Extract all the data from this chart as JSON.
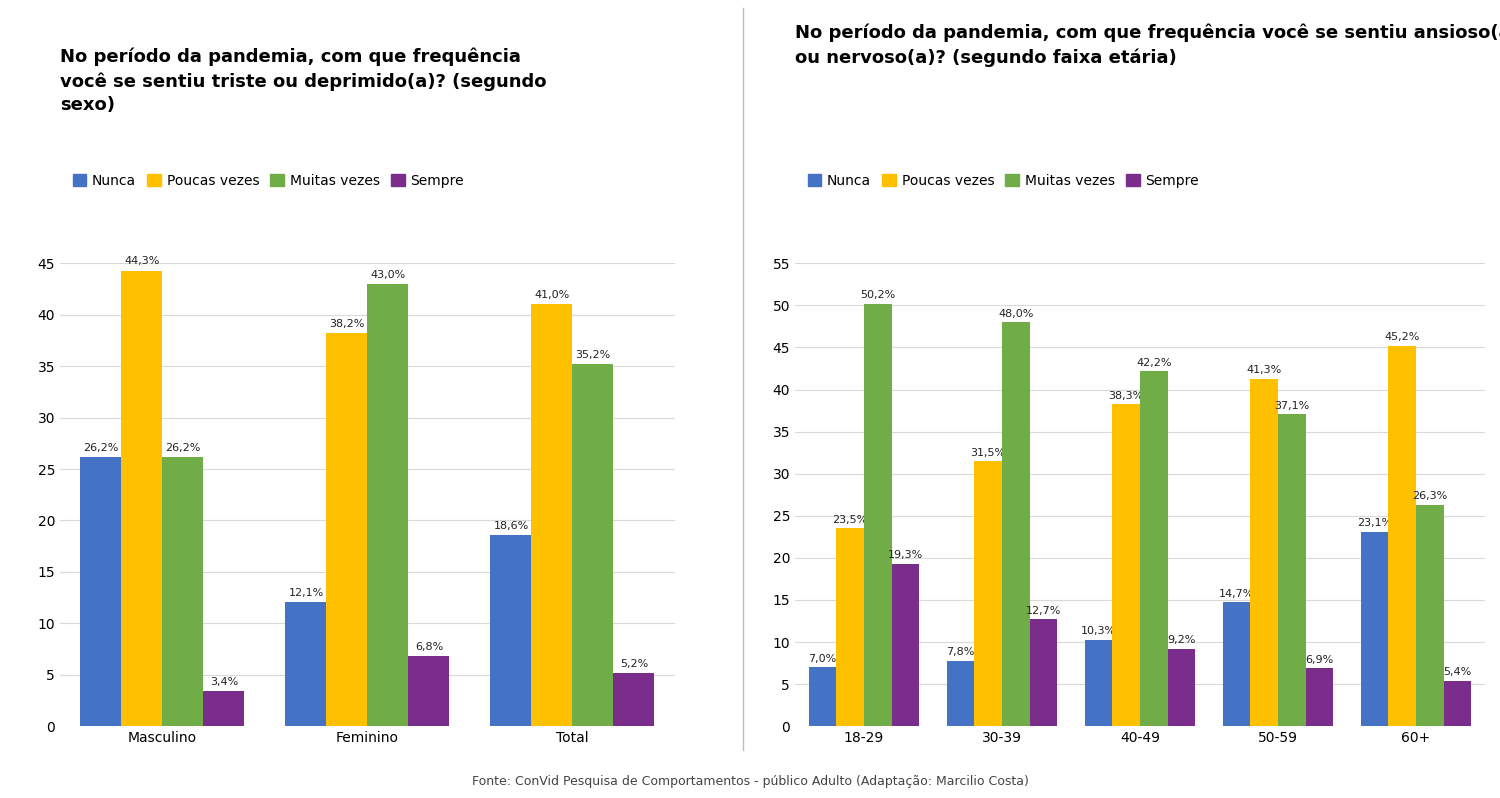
{
  "chart1": {
    "title": "No período da pandemia, com que frequência\nvocê se sentiu triste ou deprimido(a)? (segundo\nsexo)",
    "categories": [
      "Masculino",
      "Feminino",
      "Total"
    ],
    "series": {
      "Nunca": [
        26.2,
        12.1,
        18.6
      ],
      "Poucas vezes": [
        44.3,
        38.2,
        41.0
      ],
      "Muitas vezes": [
        26.2,
        43.0,
        35.2
      ],
      "Sempre": [
        3.4,
        6.8,
        5.2
      ]
    },
    "ylim": [
      0,
      45
    ],
    "yticks": [
      0,
      5,
      10,
      15,
      20,
      25,
      30,
      35,
      40,
      45
    ]
  },
  "chart2": {
    "title": "No período da pandemia, com que frequência você se sentiu ansioso(a)\nou nervoso(a)? (segundo faixa etária)",
    "categories": [
      "18-29",
      "30-39",
      "40-49",
      "50-59",
      "60+"
    ],
    "series": {
      "Nunca": [
        7.0,
        7.8,
        10.3,
        14.7,
        23.1
      ],
      "Poucas vezes": [
        23.5,
        31.5,
        38.3,
        41.3,
        45.2
      ],
      "Muitas vezes": [
        50.2,
        48.0,
        42.2,
        37.1,
        26.3
      ],
      "Sempre": [
        19.3,
        12.7,
        9.2,
        6.9,
        5.4
      ]
    },
    "ylim": [
      0,
      55
    ],
    "yticks": [
      0,
      5,
      10,
      15,
      20,
      25,
      30,
      35,
      40,
      45,
      50,
      55
    ]
  },
  "colors": {
    "Nunca": "#4472c4",
    "Poucas vezes": "#ffc000",
    "Muitas vezes": "#70ad47",
    "Sempre": "#7b2d8b"
  },
  "bar_width": 0.2,
  "legend_order": [
    "Nunca",
    "Poucas vezes",
    "Muitas vezes",
    "Sempre"
  ],
  "footer": "Fonte: ConVid Pesquisa de Comportamentos - público Adulto (Adaptação: Marcilio Costa)",
  "bg_color": "#ffffff",
  "grid_color": "#d9d9d9",
  "title_fontsize": 13,
  "label_fontsize": 8.0,
  "tick_fontsize": 10,
  "legend_fontsize": 10,
  "footer_fontsize": 9
}
